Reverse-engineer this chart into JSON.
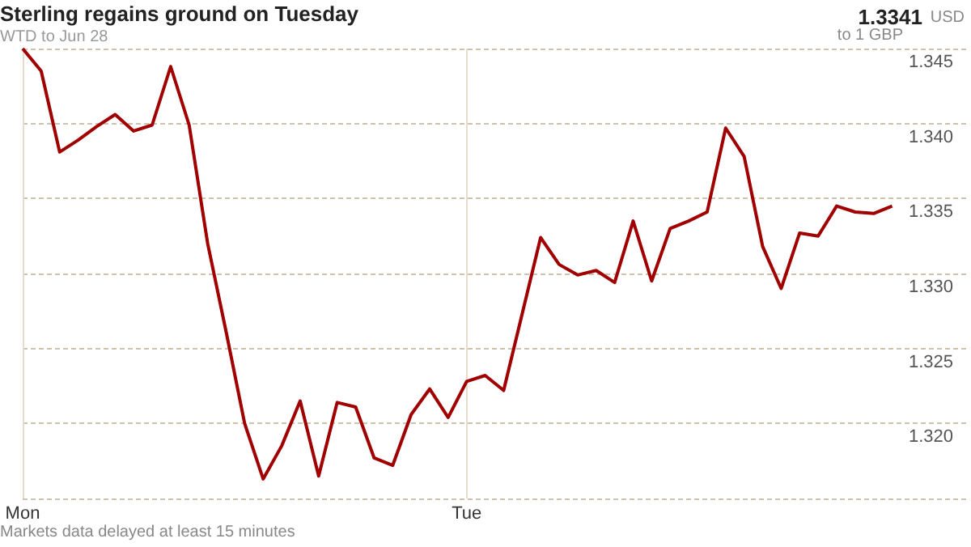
{
  "chart_data": {
    "type": "line",
    "title": "Sterling regains ground on Tuesday",
    "subtitle": "WTD to Jun 28",
    "annotations": [
      "1.3341",
      "USD",
      "to 1 GBP",
      "Markets data delayed at least 15 minutes"
    ],
    "categories": [
      "Mon",
      null,
      null,
      null,
      null,
      null,
      null,
      null,
      null,
      null,
      null,
      null,
      null,
      null,
      null,
      null,
      null,
      null,
      null,
      null,
      null,
      null,
      null,
      null,
      "Tue",
      null,
      null,
      null,
      null,
      null,
      null,
      null,
      null,
      null,
      null,
      null,
      null,
      null,
      null,
      null,
      null,
      null,
      null,
      null,
      null,
      null,
      null,
      null,
      null,
      null,
      null,
      null
    ],
    "series": [
      {
        "color": "#a00000",
        "values": [
          1.345,
          1.3435,
          1.3381,
          1.3389,
          1.3398,
          1.3406,
          1.3395,
          1.3399,
          1.3438,
          1.3399,
          1.332,
          1.3261,
          1.32,
          1.3163,
          1.3185,
          1.3215,
          1.3165,
          1.3214,
          1.3211,
          1.3177,
          1.3172,
          1.3206,
          1.3223,
          1.3204,
          1.3228,
          1.3232,
          1.3222,
          1.3273,
          1.3324,
          1.3306,
          1.3299,
          1.3302,
          1.3294,
          1.3335,
          1.3295,
          1.333,
          1.3335,
          1.3341,
          1.3397,
          1.3378,
          1.3318,
          1.329,
          1.3327,
          1.3325,
          1.3345,
          1.3341,
          1.334,
          1.3345,
          null,
          null,
          null,
          null
        ]
      }
    ],
    "ylim": [
      1.315,
      1.345
    ],
    "yticks": [
      {
        "value": 1.315,
        "label": null
      },
      {
        "value": 1.32,
        "label": "1.320"
      },
      {
        "value": 1.325,
        "label": "1.325"
      },
      {
        "value": 1.33,
        "label": "1.330"
      },
      {
        "value": 1.335,
        "label": "1.335"
      },
      {
        "value": 1.34,
        "label": "1.340"
      },
      {
        "value": 1.345,
        "label": "1.345"
      }
    ],
    "grid": true,
    "marker": "none",
    "line_style": "solid"
  }
}
